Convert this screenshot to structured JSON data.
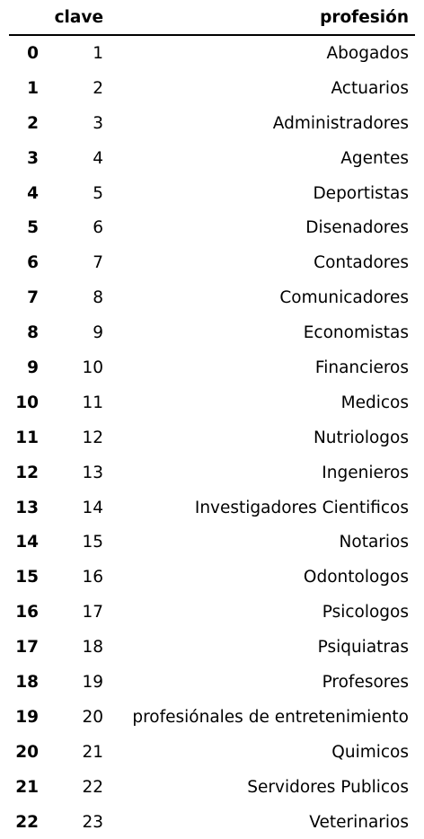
{
  "table": {
    "index_header": "",
    "columns": [
      "clave",
      "profesión"
    ],
    "rows": [
      {
        "index": "0",
        "clave": "1",
        "profesion": "Abogados"
      },
      {
        "index": "1",
        "clave": "2",
        "profesion": "Actuarios"
      },
      {
        "index": "2",
        "clave": "3",
        "profesion": "Administradores"
      },
      {
        "index": "3",
        "clave": "4",
        "profesion": "Agentes"
      },
      {
        "index": "4",
        "clave": "5",
        "profesion": "Deportistas"
      },
      {
        "index": "5",
        "clave": "6",
        "profesion": "Disenadores"
      },
      {
        "index": "6",
        "clave": "7",
        "profesion": "Contadores"
      },
      {
        "index": "7",
        "clave": "8",
        "profesion": "Comunicadores"
      },
      {
        "index": "8",
        "clave": "9",
        "profesion": "Economistas"
      },
      {
        "index": "9",
        "clave": "10",
        "profesion": "Financieros"
      },
      {
        "index": "10",
        "clave": "11",
        "profesion": "Medicos"
      },
      {
        "index": "11",
        "clave": "12",
        "profesion": "Nutriologos"
      },
      {
        "index": "12",
        "clave": "13",
        "profesion": "Ingenieros"
      },
      {
        "index": "13",
        "clave": "14",
        "profesion": "Investigadores Cientificos"
      },
      {
        "index": "14",
        "clave": "15",
        "profesion": "Notarios"
      },
      {
        "index": "15",
        "clave": "16",
        "profesion": "Odontologos"
      },
      {
        "index": "16",
        "clave": "17",
        "profesion": "Psicologos"
      },
      {
        "index": "17",
        "clave": "18",
        "profesion": "Psiquiatras"
      },
      {
        "index": "18",
        "clave": "19",
        "profesion": "Profesores"
      },
      {
        "index": "19",
        "clave": "20",
        "profesion": "profesiónales de entretenimiento"
      },
      {
        "index": "20",
        "clave": "21",
        "profesion": "Quimicos"
      },
      {
        "index": "21",
        "clave": "22",
        "profesion": "Servidores Publicos"
      },
      {
        "index": "22",
        "clave": "23",
        "profesion": "Veterinarios"
      }
    ]
  }
}
